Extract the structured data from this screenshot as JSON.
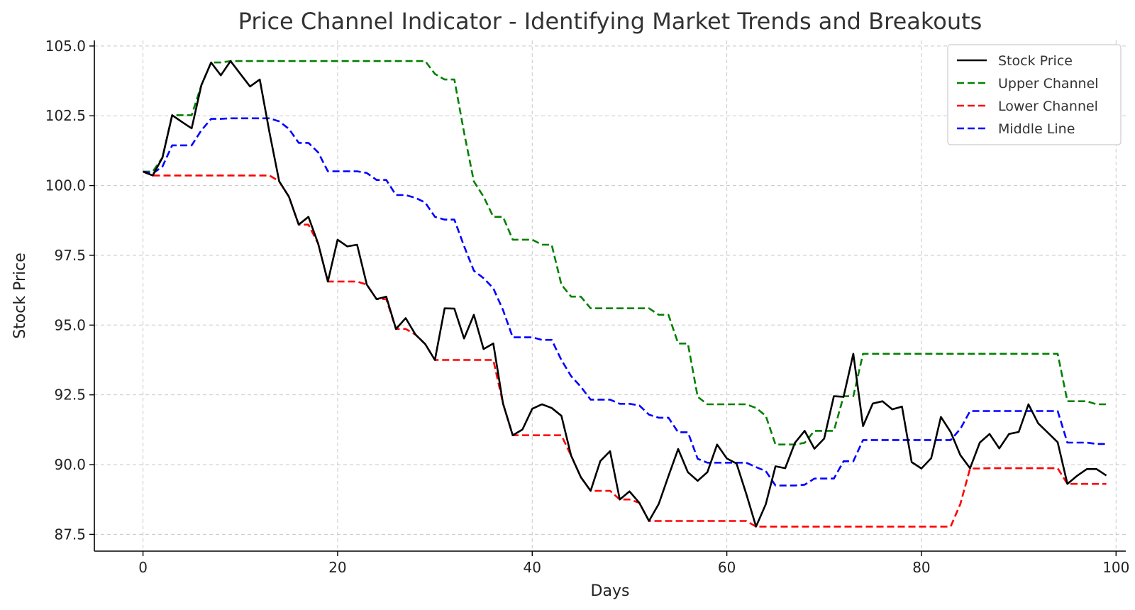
{
  "chart_data": {
    "type": "line",
    "title": "Price Channel Indicator - Identifying Market Trends and Breakouts",
    "xlabel": "Days",
    "ylabel": "Stock Price",
    "xlim": [
      -5,
      101
    ],
    "ylim": [
      86.9,
      105.2
    ],
    "xticks": [
      0,
      20,
      40,
      60,
      80,
      100
    ],
    "xtick_labels": [
      "0",
      "20",
      "40",
      "60",
      "80",
      "100"
    ],
    "yticks": [
      87.5,
      90.0,
      92.5,
      95.0,
      97.5,
      100.0,
      102.5,
      105.0
    ],
    "ytick_labels": [
      "87.5",
      "90.0",
      "92.5",
      "95.0",
      "97.5",
      "100.0",
      "102.5",
      "105.0"
    ],
    "grid": true,
    "legend_position": "top-right",
    "series": [
      {
        "name": "Stock Price",
        "color": "#000000",
        "dash": "solid",
        "x": [
          0,
          1,
          2,
          3,
          4,
          5,
          6,
          7,
          8,
          9,
          10,
          11,
          12,
          13,
          14,
          15,
          16,
          17,
          18,
          19,
          20,
          21,
          22,
          23,
          24,
          25,
          26,
          27,
          28,
          29,
          30,
          31,
          32,
          33,
          34,
          35,
          36,
          37,
          38,
          39,
          40,
          41,
          42,
          43,
          44,
          45,
          46,
          47,
          48,
          49,
          50,
          51,
          52,
          53,
          54,
          55,
          56,
          57,
          58,
          59,
          60,
          61,
          62,
          63,
          64,
          65,
          66,
          67,
          68,
          69,
          70,
          71,
          72,
          73,
          74,
          75,
          76,
          77,
          78,
          79,
          80,
          81,
          82,
          83,
          84,
          85,
          86,
          87,
          88,
          89,
          90,
          91,
          92,
          93,
          94,
          95,
          96,
          97,
          98,
          99
        ],
        "values": [
          100.5,
          100.36,
          101.0,
          102.52,
          102.28,
          102.05,
          103.6,
          104.41,
          103.95,
          104.46,
          104.0,
          103.55,
          103.8,
          101.9,
          100.15,
          99.6,
          98.6,
          98.88,
          97.92,
          96.56,
          98.06,
          97.82,
          97.88,
          96.45,
          95.93,
          96.02,
          94.86,
          95.25,
          94.66,
          94.32,
          93.75,
          95.6,
          95.59,
          94.52,
          95.37,
          94.14,
          94.34,
          92.19,
          91.05,
          91.26,
          92.0,
          92.16,
          92.03,
          91.75,
          90.32,
          89.55,
          89.06,
          90.13,
          90.48,
          88.75,
          89.04,
          88.63,
          87.98,
          88.59,
          89.59,
          90.56,
          89.73,
          89.42,
          89.73,
          90.72,
          90.22,
          90.04,
          88.95,
          87.78,
          88.58,
          89.94,
          89.87,
          90.78,
          91.21,
          90.57,
          90.93,
          92.45,
          92.43,
          93.97,
          91.38,
          92.19,
          92.27,
          91.98,
          92.08,
          90.09,
          89.86,
          90.23,
          91.71,
          91.17,
          90.34,
          89.87,
          90.79,
          91.1,
          90.58,
          91.1,
          91.17,
          92.16,
          91.48,
          91.14,
          90.8,
          89.31,
          89.6,
          89.84,
          89.84,
          89.61
        ]
      },
      {
        "name": "Upper Channel",
        "color": "#008000",
        "dash": "dashed",
        "x": [
          0,
          1,
          2,
          3,
          4,
          5,
          6,
          7,
          8,
          9,
          10,
          11,
          12,
          13,
          14,
          15,
          16,
          17,
          18,
          19,
          20,
          21,
          22,
          23,
          24,
          25,
          26,
          27,
          28,
          29,
          30,
          31,
          32,
          33,
          34,
          35,
          36,
          37,
          38,
          39,
          40,
          41,
          42,
          43,
          44,
          45,
          46,
          47,
          48,
          49,
          50,
          51,
          52,
          53,
          54,
          55,
          56,
          57,
          58,
          59,
          60,
          61,
          62,
          63,
          64,
          65,
          66,
          67,
          68,
          69,
          70,
          71,
          72,
          73,
          74,
          75,
          76,
          77,
          78,
          79,
          80,
          81,
          82,
          83,
          84,
          85,
          86,
          87,
          88,
          89,
          90,
          91,
          92,
          93,
          94,
          95,
          96,
          97,
          98,
          99
        ],
        "values": [
          100.5,
          100.5,
          101.0,
          102.52,
          102.52,
          102.52,
          103.6,
          104.41,
          104.41,
          104.46,
          104.46,
          104.46,
          104.46,
          104.46,
          104.46,
          104.46,
          104.46,
          104.46,
          104.46,
          104.46,
          104.46,
          104.46,
          104.46,
          104.46,
          104.46,
          104.46,
          104.46,
          104.46,
          104.46,
          104.46,
          104.0,
          103.8,
          103.8,
          101.9,
          100.15,
          99.6,
          98.88,
          98.88,
          98.06,
          98.06,
          98.06,
          97.88,
          97.88,
          96.45,
          96.02,
          96.02,
          95.6,
          95.6,
          95.6,
          95.6,
          95.6,
          95.6,
          95.6,
          95.37,
          95.37,
          94.34,
          94.34,
          92.43,
          92.16,
          92.16,
          92.16,
          92.16,
          92.16,
          92.03,
          91.75,
          90.72,
          90.72,
          90.72,
          90.78,
          91.21,
          91.21,
          91.21,
          92.45,
          92.45,
          93.97,
          93.97,
          93.97,
          93.97,
          93.97,
          93.97,
          93.97,
          93.97,
          93.97,
          93.97,
          93.97,
          93.97,
          93.97,
          93.97,
          93.97,
          93.97,
          93.97,
          93.97,
          93.97,
          93.97,
          93.97,
          92.27,
          92.27,
          92.27,
          92.16,
          92.16
        ]
      },
      {
        "name": "Lower Channel",
        "color": "#ff0000",
        "dash": "dashed",
        "x": [
          0,
          1,
          2,
          3,
          4,
          5,
          6,
          7,
          8,
          9,
          10,
          11,
          12,
          13,
          14,
          15,
          16,
          17,
          18,
          19,
          20,
          21,
          22,
          23,
          24,
          25,
          26,
          27,
          28,
          29,
          30,
          31,
          32,
          33,
          34,
          35,
          36,
          37,
          38,
          39,
          40,
          41,
          42,
          43,
          44,
          45,
          46,
          47,
          48,
          49,
          50,
          51,
          52,
          53,
          54,
          55,
          56,
          57,
          58,
          59,
          60,
          61,
          62,
          63,
          64,
          65,
          66,
          67,
          68,
          69,
          70,
          71,
          72,
          73,
          74,
          75,
          76,
          77,
          78,
          79,
          80,
          81,
          82,
          83,
          84,
          85,
          86,
          87,
          88,
          89,
          90,
          91,
          92,
          93,
          94,
          95,
          96,
          97,
          98,
          99
        ],
        "values": [
          100.5,
          100.36,
          100.36,
          100.36,
          100.36,
          100.36,
          100.36,
          100.36,
          100.36,
          100.36,
          100.36,
          100.36,
          100.36,
          100.36,
          100.15,
          99.6,
          98.6,
          98.6,
          97.92,
          96.56,
          96.56,
          96.56,
          96.56,
          96.45,
          95.93,
          95.93,
          94.86,
          94.86,
          94.66,
          94.32,
          93.75,
          93.75,
          93.75,
          93.75,
          93.75,
          93.75,
          93.75,
          92.19,
          91.05,
          91.05,
          91.05,
          91.05,
          91.05,
          91.05,
          90.32,
          89.55,
          89.06,
          89.06,
          89.06,
          88.75,
          88.75,
          88.63,
          87.98,
          87.98,
          87.98,
          87.98,
          87.98,
          87.98,
          87.98,
          87.98,
          87.98,
          87.98,
          87.98,
          87.78,
          87.78,
          87.78,
          87.78,
          87.78,
          87.78,
          87.78,
          87.78,
          87.78,
          87.78,
          87.78,
          87.78,
          87.78,
          87.78,
          87.78,
          87.78,
          87.78,
          87.78,
          87.78,
          87.78,
          87.78,
          88.59,
          89.86,
          89.86,
          89.87,
          89.87,
          89.87,
          89.87,
          89.87,
          89.87,
          89.87,
          89.87,
          89.31,
          89.31,
          89.31,
          89.31,
          89.31
        ]
      },
      {
        "name": "Middle Line",
        "color": "#0000ff",
        "dash": "dashed",
        "x": [
          0,
          1,
          2,
          3,
          4,
          5,
          6,
          7,
          8,
          9,
          10,
          11,
          12,
          13,
          14,
          15,
          16,
          17,
          18,
          19,
          20,
          21,
          22,
          23,
          24,
          25,
          26,
          27,
          28,
          29,
          30,
          31,
          32,
          33,
          34,
          35,
          36,
          37,
          38,
          39,
          40,
          41,
          42,
          43,
          44,
          45,
          46,
          47,
          48,
          49,
          50,
          51,
          52,
          53,
          54,
          55,
          56,
          57,
          58,
          59,
          60,
          61,
          62,
          63,
          64,
          65,
          66,
          67,
          68,
          69,
          70,
          71,
          72,
          73,
          74,
          75,
          76,
          77,
          78,
          79,
          80,
          81,
          82,
          83,
          84,
          85,
          86,
          87,
          88,
          89,
          90,
          91,
          92,
          93,
          94,
          95,
          96,
          97,
          98,
          99
        ],
        "values": [
          100.5,
          100.43,
          100.68,
          101.44,
          101.44,
          101.44,
          101.98,
          102.39,
          102.39,
          102.41,
          102.41,
          102.41,
          102.41,
          102.41,
          102.3,
          102.03,
          101.53,
          101.53,
          101.19,
          100.51,
          100.51,
          100.51,
          100.51,
          100.45,
          100.2,
          100.2,
          99.66,
          99.66,
          99.56,
          99.39,
          98.88,
          98.78,
          98.78,
          97.83,
          96.95,
          96.68,
          96.32,
          95.54,
          94.56,
          94.56,
          94.56,
          94.47,
          94.47,
          93.75,
          93.17,
          92.79,
          92.33,
          92.33,
          92.33,
          92.18,
          92.18,
          92.12,
          91.79,
          91.68,
          91.68,
          91.16,
          91.16,
          90.21,
          90.07,
          90.07,
          90.07,
          90.07,
          90.07,
          89.91,
          89.77,
          89.25,
          89.25,
          89.25,
          89.28,
          89.5,
          89.5,
          89.5,
          90.12,
          90.12,
          90.88,
          90.88,
          90.88,
          90.88,
          90.88,
          90.88,
          90.88,
          90.88,
          90.88,
          90.88,
          91.28,
          91.92,
          91.92,
          91.92,
          91.92,
          91.92,
          91.92,
          91.92,
          91.92,
          91.92,
          91.92,
          90.79,
          90.79,
          90.79,
          90.74,
          90.74
        ]
      }
    ]
  }
}
